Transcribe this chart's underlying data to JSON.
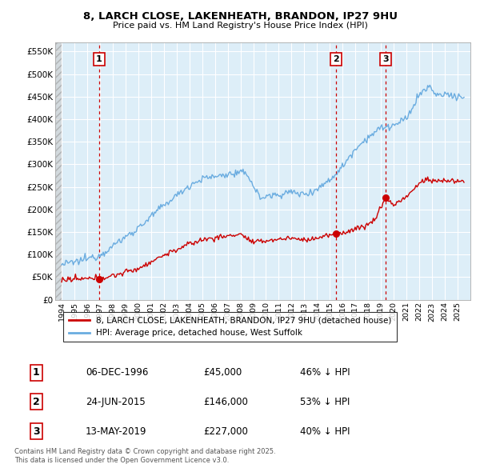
{
  "title_line1": "8, LARCH CLOSE, LAKENHEATH, BRANDON, IP27 9HU",
  "title_line2": "Price paid vs. HM Land Registry's House Price Index (HPI)",
  "background_color": "#ffffff",
  "plot_bg_color": "#ddeef8",
  "grid_color": "#ffffff",
  "hpi_color": "#6aace0",
  "sale_color": "#cc0000",
  "dashed_line_color": "#cc0000",
  "hatch_color": "#c8c8c8",
  "sale_points": [
    {
      "date_num": 1996.92,
      "price": 45000,
      "label": "1"
    },
    {
      "date_num": 2015.48,
      "price": 146000,
      "label": "2"
    },
    {
      "date_num": 2019.37,
      "price": 227000,
      "label": "3"
    }
  ],
  "transactions": [
    {
      "num": "1",
      "date": "06-DEC-1996",
      "price": "£45,000",
      "hpi": "46% ↓ HPI"
    },
    {
      "num": "2",
      "date": "24-JUN-2015",
      "price": "£146,000",
      "hpi": "53% ↓ HPI"
    },
    {
      "num": "3",
      "date": "13-MAY-2019",
      "price": "£227,000",
      "hpi": "40% ↓ HPI"
    }
  ],
  "legend_line1": "8, LARCH CLOSE, LAKENHEATH, BRANDON, IP27 9HU (detached house)",
  "legend_line2": "HPI: Average price, detached house, West Suffolk",
  "footnote": "Contains HM Land Registry data © Crown copyright and database right 2025.\nThis data is licensed under the Open Government Licence v3.0.",
  "ylim": [
    0,
    570000
  ],
  "yticks": [
    0,
    50000,
    100000,
    150000,
    200000,
    250000,
    300000,
    350000,
    400000,
    450000,
    500000,
    550000
  ],
  "xlim_start": 1993.5,
  "xlim_end": 2026.0,
  "xticks": [
    1994,
    1995,
    1996,
    1997,
    1998,
    1999,
    2000,
    2001,
    2002,
    2003,
    2004,
    2005,
    2006,
    2007,
    2008,
    2009,
    2010,
    2011,
    2012,
    2013,
    2014,
    2015,
    2016,
    2017,
    2018,
    2019,
    2020,
    2021,
    2022,
    2023,
    2024,
    2025
  ]
}
